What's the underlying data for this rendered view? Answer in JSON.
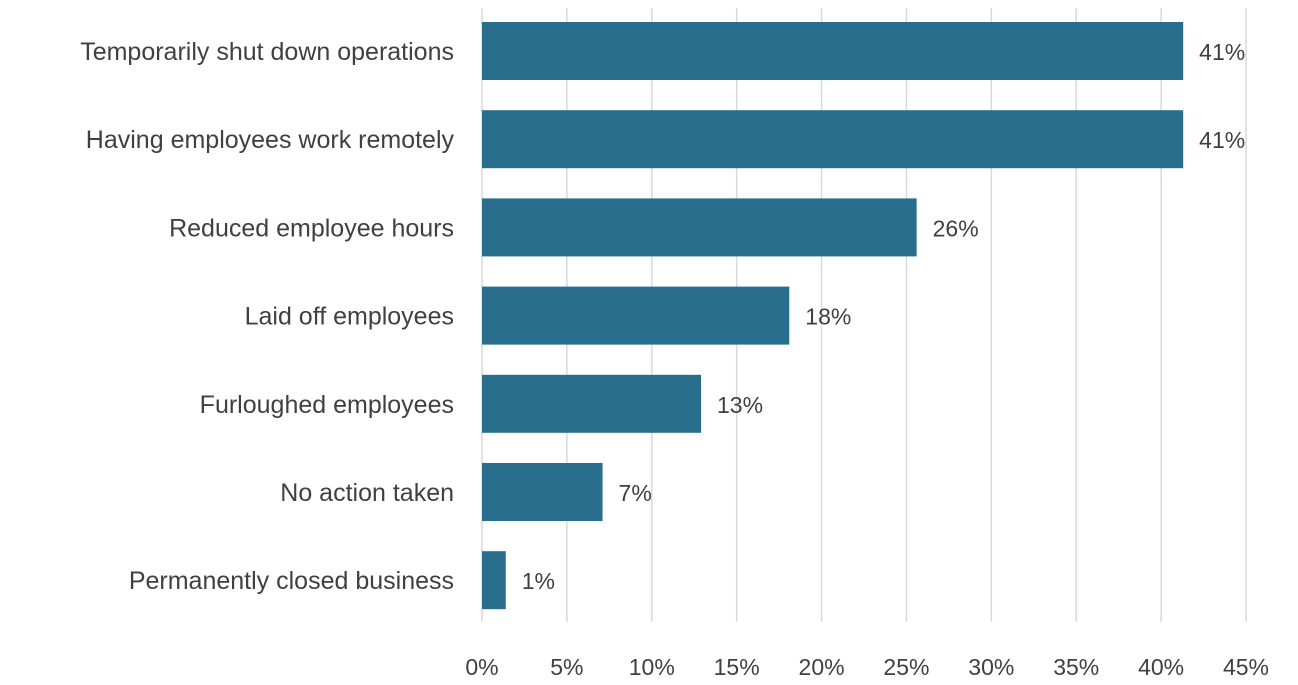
{
  "chart_data": {
    "type": "bar",
    "orientation": "horizontal",
    "title": "",
    "xlabel": "",
    "ylabel": "",
    "categories": [
      "Temporarily shut down operations",
      "Having employees work remotely",
      "Reduced employee hours",
      "Laid off employees",
      "Furloughed employees",
      "No action taken",
      "Permanently closed business"
    ],
    "values": [
      41.3,
      41.3,
      25.6,
      18.1,
      12.9,
      7.1,
      1.4
    ],
    "data_labels": [
      "41%",
      "41%",
      "26%",
      "18%",
      "13%",
      "7%",
      "1%"
    ],
    "xlim": [
      0,
      45
    ],
    "x_ticks": [
      0,
      5,
      10,
      15,
      20,
      25,
      30,
      35,
      40,
      45
    ],
    "x_tick_labels": [
      "0%",
      "5%",
      "10%",
      "15%",
      "20%",
      "25%",
      "30%",
      "35%",
      "40%",
      "45%"
    ],
    "bar_color": "#296e8c",
    "grid": "vertical",
    "legend": "none"
  }
}
